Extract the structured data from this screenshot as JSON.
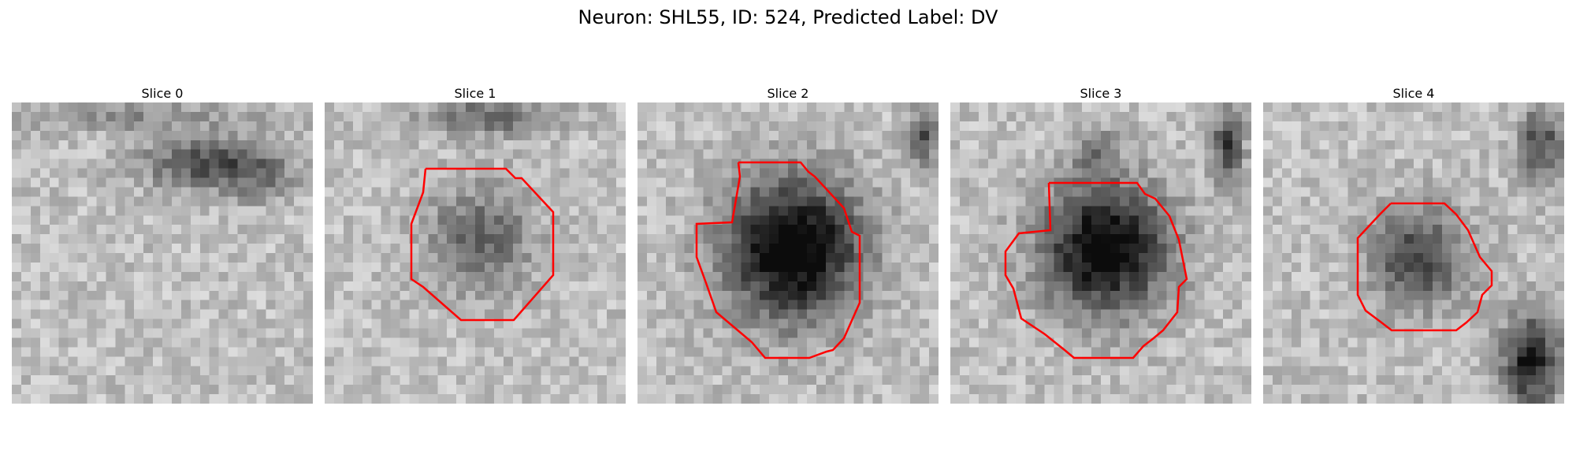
{
  "figure": {
    "title": "Neuron: SHL55, ID: 524, Predicted Label: DV"
  },
  "slices": [
    {
      "title": "Slice 0",
      "has_contour": false
    },
    {
      "title": "Slice 1",
      "has_contour": true
    },
    {
      "title": "Slice 2",
      "has_contour": true
    },
    {
      "title": "Slice 3",
      "has_contour": true
    },
    {
      "title": "Slice 4",
      "has_contour": true
    }
  ],
  "colors": {
    "contour": "#ff0000",
    "background": "#ffffff"
  },
  "colormap": "gray"
}
